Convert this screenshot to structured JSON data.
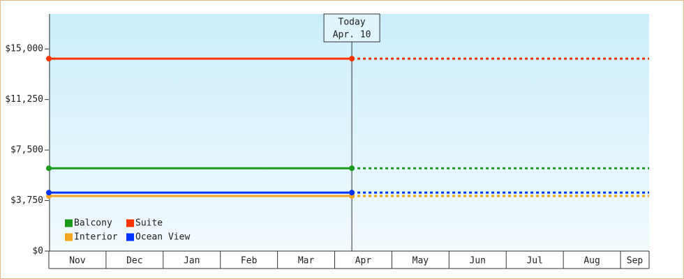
{
  "chart_data": {
    "type": "line",
    "categories": [
      "Nov",
      "Dec",
      "Jan",
      "Feb",
      "Mar",
      "Apr",
      "May",
      "Jun",
      "Jul",
      "Aug",
      "Sep"
    ],
    "x": [
      0,
      5.3
    ],
    "xlim": [
      0,
      10.5
    ],
    "series": [
      {
        "name": "Balcony",
        "color": "#1a9a1a",
        "values": [
          6150,
          6150
        ]
      },
      {
        "name": "Suite",
        "color": "#ff3300",
        "values": [
          14280,
          14280
        ]
      },
      {
        "name": "Interior",
        "color": "#f5a623",
        "values": [
          4090,
          4090
        ]
      },
      {
        "name": "Ocean View",
        "color": "#0033ff",
        "values": [
          4340,
          4340
        ]
      }
    ],
    "ylim": [
      0,
      17600
    ],
    "yticks": [
      {
        "value": 0,
        "label": "$0"
      },
      {
        "value": 3750,
        "label": "$3,750"
      },
      {
        "value": 7500,
        "label": "$7,500"
      },
      {
        "value": 11250,
        "label": "$11,250"
      },
      {
        "value": 15000,
        "label": "$15,000"
      }
    ],
    "annotation": {
      "title": "Today",
      "date": "Apr. 10",
      "x": 5.3
    },
    "projection": true,
    "legend": "bottom-left"
  }
}
